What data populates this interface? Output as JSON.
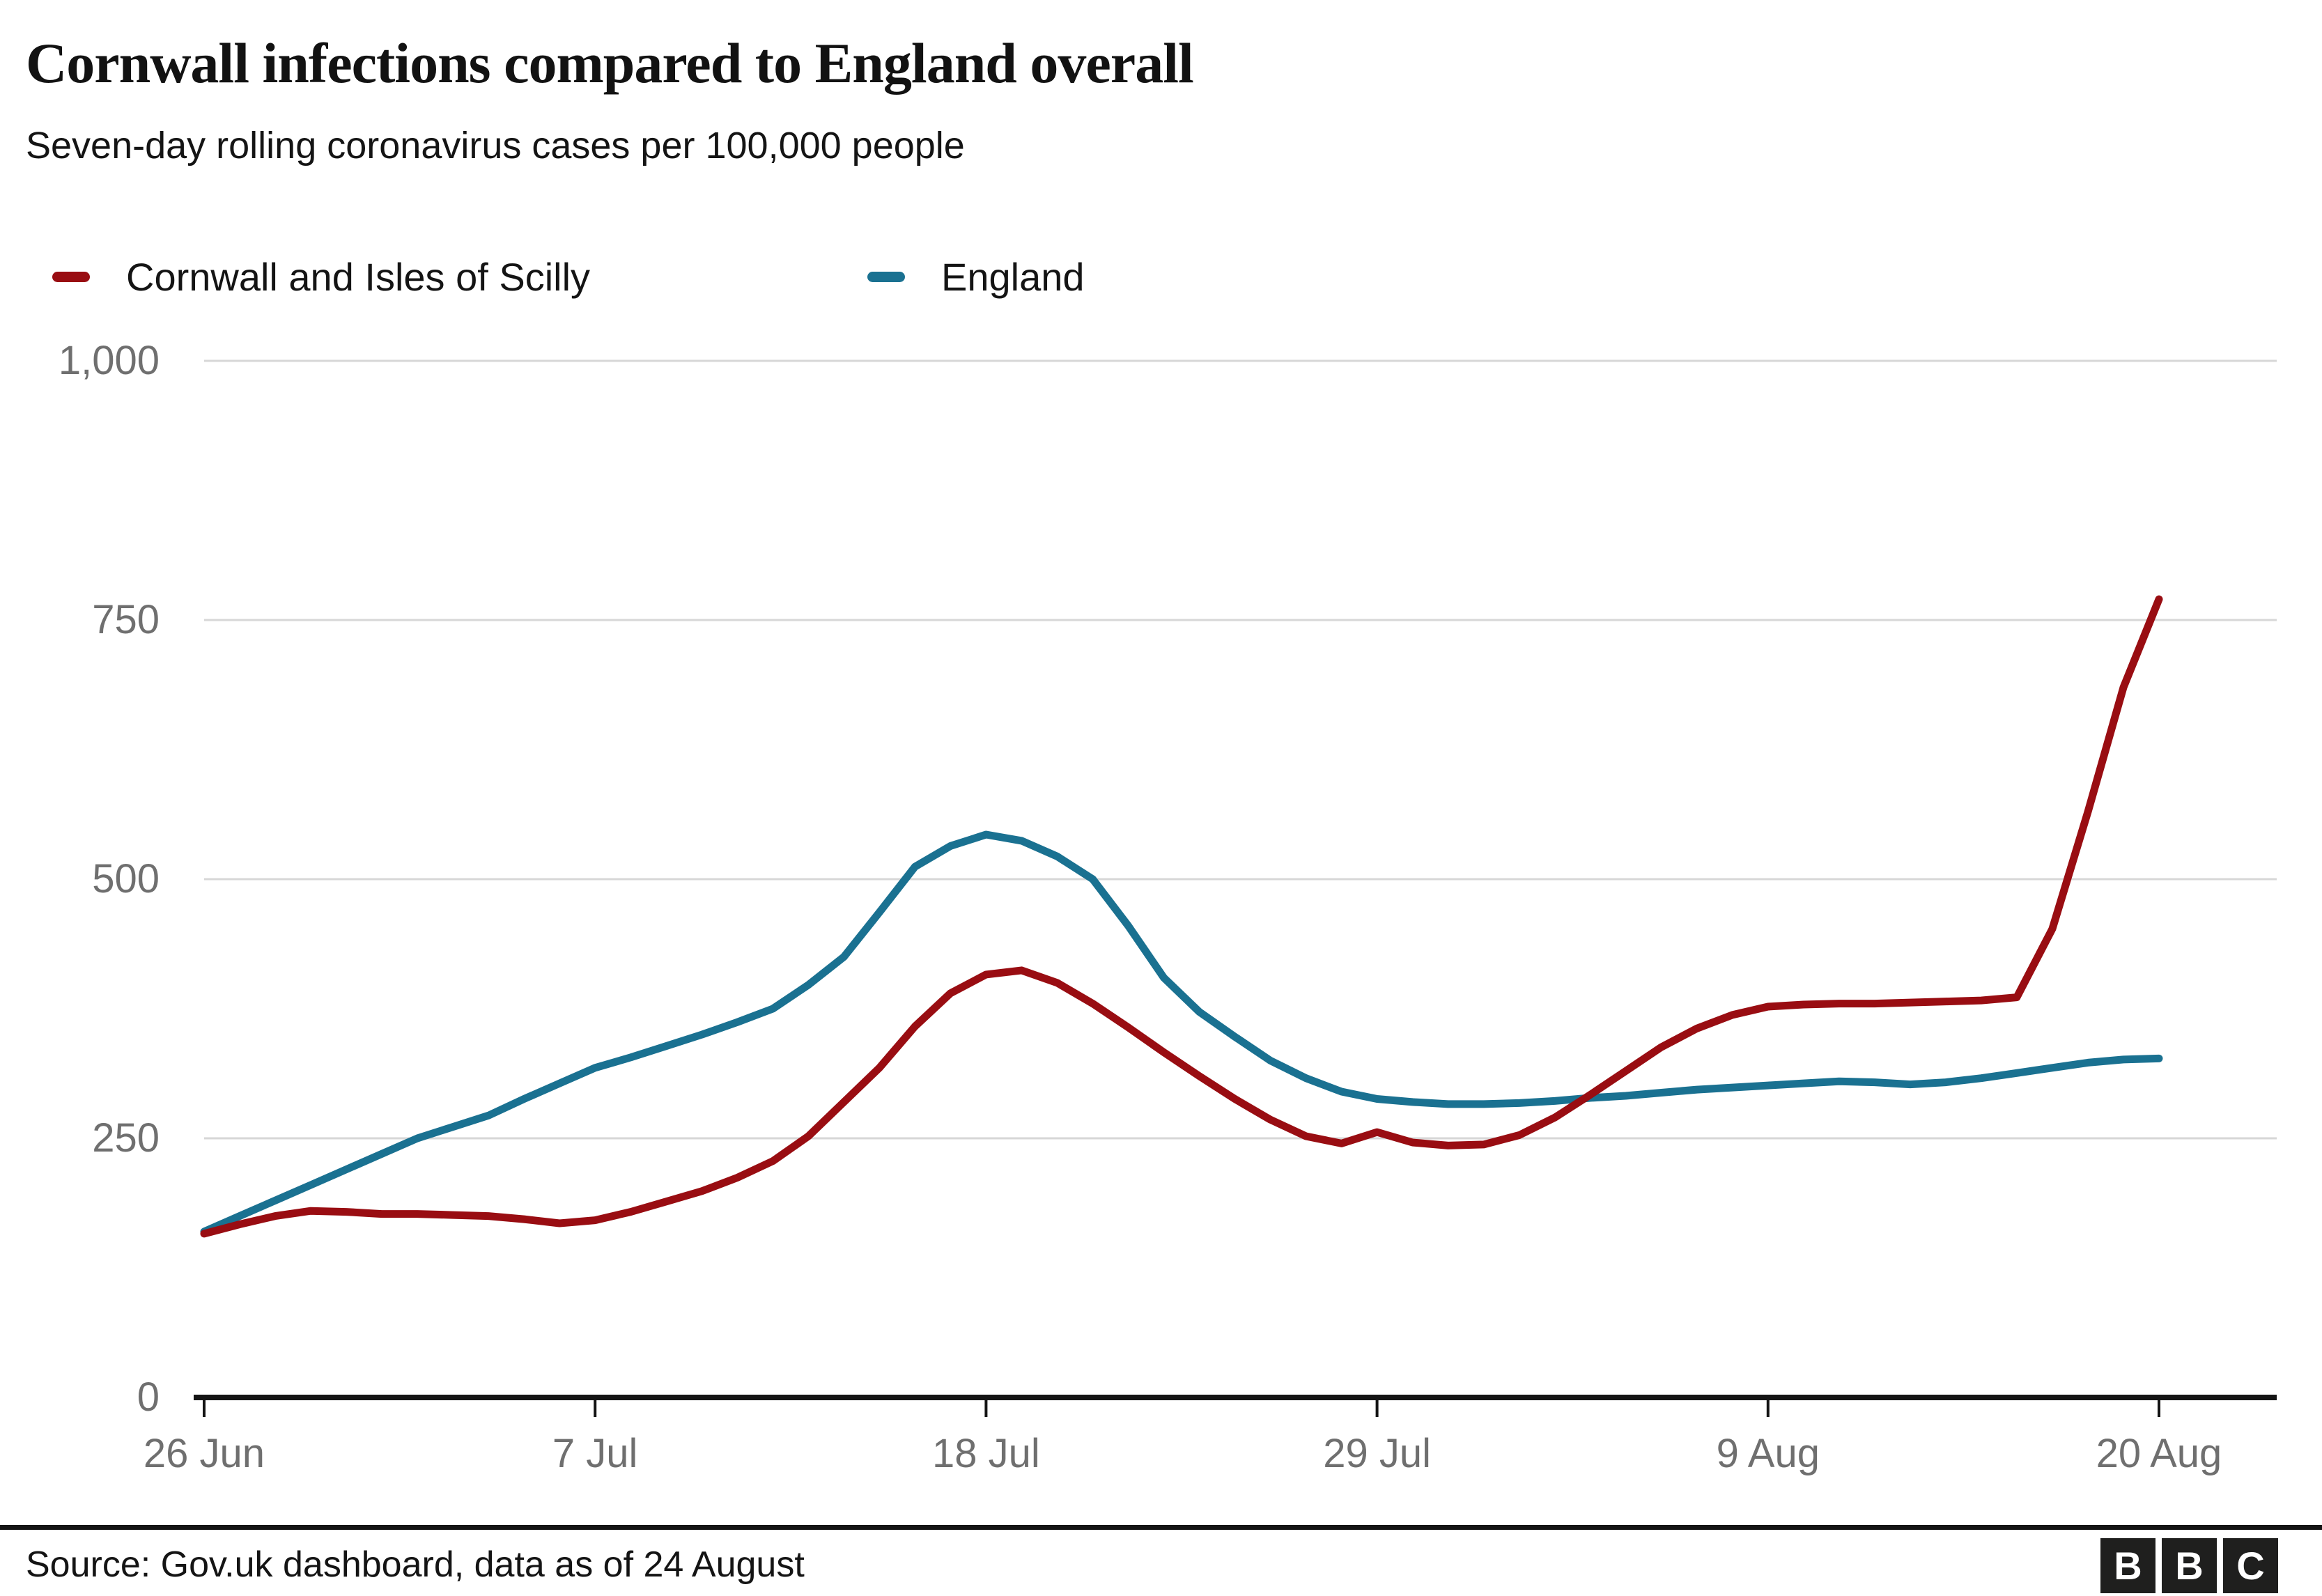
{
  "header": {
    "title": "Cornwall infections compared to England overall",
    "subtitle": "Seven-day rolling coronavirus cases per 100,000 people"
  },
  "legend": [
    {
      "label": "Cornwall and Isles of Scilly",
      "color": "#990D12"
    },
    {
      "label": "England",
      "color": "#1A7191"
    }
  ],
  "footer": {
    "source": "Source: Gov.uk dashboard, data as of 24 August",
    "logo_letters": [
      "B",
      "B",
      "C"
    ]
  },
  "chart_data": {
    "type": "line",
    "title": "Cornwall infections compared to England overall",
    "subtitle": "Seven-day rolling coronavirus cases per 100,000 people",
    "xlabel": "",
    "ylabel": "",
    "ylim": [
      0,
      1000
    ],
    "grid": "horizontal",
    "legend_position": "top",
    "y_ticks": [
      {
        "value": 0,
        "label": "0"
      },
      {
        "value": 250,
        "label": "250"
      },
      {
        "value": 500,
        "label": "500"
      },
      {
        "value": 750,
        "label": "750"
      },
      {
        "value": 1000,
        "label": "1,000"
      }
    ],
    "x_ticks": [
      {
        "day": 0,
        "label": "26 Jun"
      },
      {
        "day": 11,
        "label": "7 Jul"
      },
      {
        "day": 22,
        "label": "18 Jul"
      },
      {
        "day": 33,
        "label": "29 Jul"
      },
      {
        "day": 44,
        "label": "9 Aug"
      },
      {
        "day": 55,
        "label": "20 Aug"
      }
    ],
    "x_day_span": 55,
    "series": [
      {
        "name": "Cornwall and Isles of Scilly",
        "color": "#990D12",
        "values": [
          158,
          167,
          175,
          180,
          179,
          177,
          177,
          176,
          175,
          172,
          168,
          171,
          179,
          189,
          199,
          212,
          228,
          252,
          285,
          318,
          358,
          390,
          408,
          412,
          400,
          380,
          357,
          333,
          310,
          288,
          268,
          252,
          245,
          256,
          246,
          243,
          244,
          253,
          270,
          292,
          315,
          338,
          356,
          369,
          377,
          379,
          380,
          380,
          381,
          382,
          383,
          386,
          452,
          565,
          685,
          770
        ]
      },
      {
        "name": "England",
        "color": "#1A7191",
        "values": [
          160,
          175,
          190,
          205,
          220,
          235,
          250,
          261,
          272,
          288,
          303,
          318,
          328,
          339,
          350,
          362,
          375,
          398,
          425,
          468,
          512,
          532,
          543,
          537,
          522,
          500,
          455,
          405,
          372,
          348,
          325,
          308,
          295,
          288,
          285,
          283,
          283,
          284,
          286,
          289,
          291,
          294,
          297,
          299,
          301,
          303,
          305,
          304,
          302,
          304,
          308,
          313,
          318,
          323,
          326,
          327
        ]
      }
    ]
  }
}
